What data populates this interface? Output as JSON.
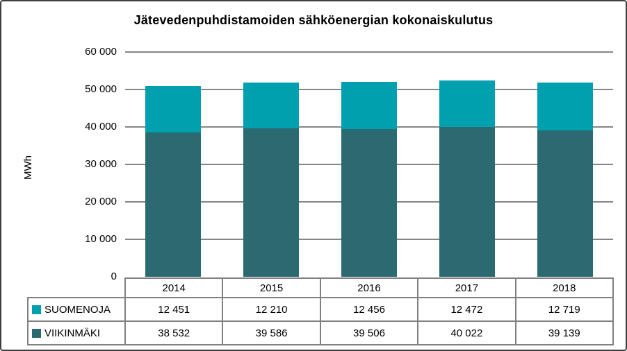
{
  "y_axis": {
    "label": "MWh",
    "ticks": [
      "60 000",
      "50 000",
      "40 000",
      "30 000",
      "20 000",
      "10 000",
      "0"
    ]
  },
  "chart_data": {
    "type": "bar",
    "stacked": true,
    "title": "Jätevedenpuhdistamoiden sähköenergian kokonaiskulutus",
    "ylabel": "MWh",
    "ylim": [
      0,
      60000
    ],
    "grid": true,
    "legend_position": "table-left",
    "categories": [
      "2014",
      "2015",
      "2016",
      "2017",
      "2018"
    ],
    "series": [
      {
        "name": "SUOMENOJA",
        "color": "#00A0AE",
        "values": [
          12451,
          12210,
          12456,
          12472,
          12719
        ],
        "labels": [
          "12 451",
          "12 210",
          "12 456",
          "12 472",
          "12 719"
        ]
      },
      {
        "name": "VIIKINMÄKI",
        "color": "#2B6A70",
        "values": [
          38532,
          39586,
          39506,
          40022,
          39139
        ],
        "labels": [
          "38 532",
          "39 586",
          "39 506",
          "40 022",
          "39 139"
        ]
      }
    ],
    "stack_order_bottom_to_top": [
      "VIIKINMÄKI",
      "SUOMENOJA"
    ]
  }
}
